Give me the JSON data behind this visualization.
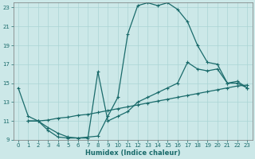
{
  "xlabel": "Humidex (Indice chaleur)",
  "bg_color": "#cce8e8",
  "line_color": "#1a6b6b",
  "grid_color": "#aad4d4",
  "xlim": [
    -0.5,
    23.5
  ],
  "ylim": [
    9,
    23.5
  ],
  "yticks": [
    9,
    11,
    13,
    15,
    17,
    19,
    21,
    23
  ],
  "xticks": [
    0,
    1,
    2,
    3,
    4,
    5,
    6,
    7,
    8,
    9,
    10,
    11,
    12,
    13,
    14,
    15,
    16,
    17,
    18,
    19,
    20,
    21,
    22,
    23
  ],
  "curve1_x": [
    0,
    1,
    2,
    3,
    4,
    5,
    6,
    7,
    8,
    9,
    10,
    11,
    12,
    13,
    14,
    15,
    16,
    17,
    18,
    19,
    20,
    21,
    22,
    23
  ],
  "curve1_y": [
    14.5,
    11.5,
    11.0,
    10.0,
    9.3,
    9.2,
    9.2,
    9.3,
    9.4,
    11.5,
    13.5,
    20.2,
    23.2,
    23.5,
    23.2,
    23.5,
    22.8,
    21.5,
    19.0,
    17.2,
    17.0,
    15.0,
    15.0,
    14.5
  ],
  "curve2_x": [
    1,
    2,
    3,
    4,
    5,
    6,
    7,
    8,
    9,
    10,
    11,
    12,
    13,
    14,
    15,
    16,
    17,
    18,
    19,
    20,
    21,
    22,
    23
  ],
  "curve2_y": [
    11.0,
    11.0,
    10.3,
    9.7,
    9.3,
    9.2,
    9.2,
    16.2,
    11.0,
    11.5,
    12.0,
    13.0,
    13.5,
    14.0,
    14.5,
    15.0,
    17.2,
    16.5,
    16.3,
    16.5,
    15.0,
    15.2,
    14.5
  ],
  "curve3_x": [
    1,
    2,
    3,
    4,
    5,
    6,
    7,
    8,
    9,
    10,
    11,
    12,
    13,
    14,
    15,
    16,
    17,
    18,
    19,
    20,
    21,
    22,
    23
  ],
  "curve3_y": [
    11.0,
    11.0,
    11.1,
    11.3,
    11.4,
    11.6,
    11.7,
    11.9,
    12.1,
    12.3,
    12.5,
    12.7,
    12.9,
    13.1,
    13.3,
    13.5,
    13.7,
    13.9,
    14.1,
    14.3,
    14.5,
    14.7,
    14.8
  ]
}
